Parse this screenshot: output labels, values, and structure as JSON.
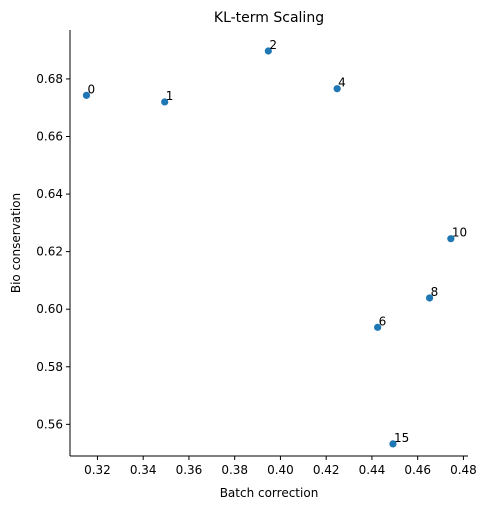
{
  "chart_data": {
    "type": "scatter",
    "title": "KL-term Scaling",
    "xlabel": "Batch correction",
    "ylabel": "Bio conservation",
    "xlim": [
      0.308,
      0.482
    ],
    "ylim": [
      0.549,
      0.697
    ],
    "xticks": [
      0.32,
      0.34,
      0.36,
      0.38,
      0.4,
      0.42,
      0.44,
      0.46,
      0.48
    ],
    "xtick_labels": [
      "0.32",
      "0.34",
      "0.36",
      "0.38",
      "0.40",
      "0.42",
      "0.44",
      "0.46",
      "0.48"
    ],
    "yticks": [
      0.56,
      0.58,
      0.6,
      0.62,
      0.64,
      0.66,
      0.68
    ],
    "ytick_labels": [
      "0.56",
      "0.58",
      "0.60",
      "0.62",
      "0.64",
      "0.66",
      "0.68"
    ],
    "grid": false,
    "marker_color": "#1f77b4",
    "points": [
      {
        "label": "0",
        "x": 0.3152,
        "y": 0.6743
      },
      {
        "label": "1",
        "x": 0.3494,
        "y": 0.672
      },
      {
        "label": "2",
        "x": 0.3947,
        "y": 0.6897
      },
      {
        "label": "4",
        "x": 0.4248,
        "y": 0.6766
      },
      {
        "label": "6",
        "x": 0.4425,
        "y": 0.5937
      },
      {
        "label": "8",
        "x": 0.4652,
        "y": 0.6039
      },
      {
        "label": "10",
        "x": 0.4745,
        "y": 0.6245
      },
      {
        "label": "15",
        "x": 0.4492,
        "y": 0.5532
      }
    ]
  }
}
